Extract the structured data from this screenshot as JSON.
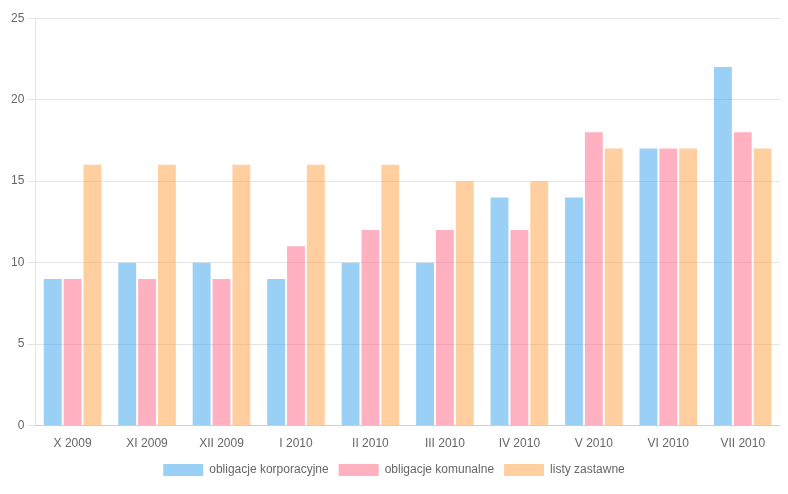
{
  "chart_data": {
    "type": "bar",
    "categories": [
      "X 2009",
      "XI 2009",
      "XII 2009",
      "I 2010",
      "II 2010",
      "III 2010",
      "IV 2010",
      "V 2010",
      "VI 2010",
      "VII 2010"
    ],
    "series": [
      {
        "name": "obligacje korporacyjne",
        "values": [
          9,
          10,
          10,
          9,
          10,
          10,
          14,
          14,
          17,
          22
        ]
      },
      {
        "name": "obligacje komunalne",
        "values": [
          9,
          9,
          9,
          11,
          12,
          12,
          12,
          18,
          17,
          18
        ]
      },
      {
        "name": "listy zastawne",
        "values": [
          16,
          16,
          16,
          16,
          16,
          15,
          15,
          17,
          17,
          17
        ]
      }
    ],
    "ylim": [
      0,
      25
    ],
    "yticks": [
      0,
      5,
      10,
      15,
      20,
      25
    ],
    "grid": true,
    "legend": "bottom"
  }
}
